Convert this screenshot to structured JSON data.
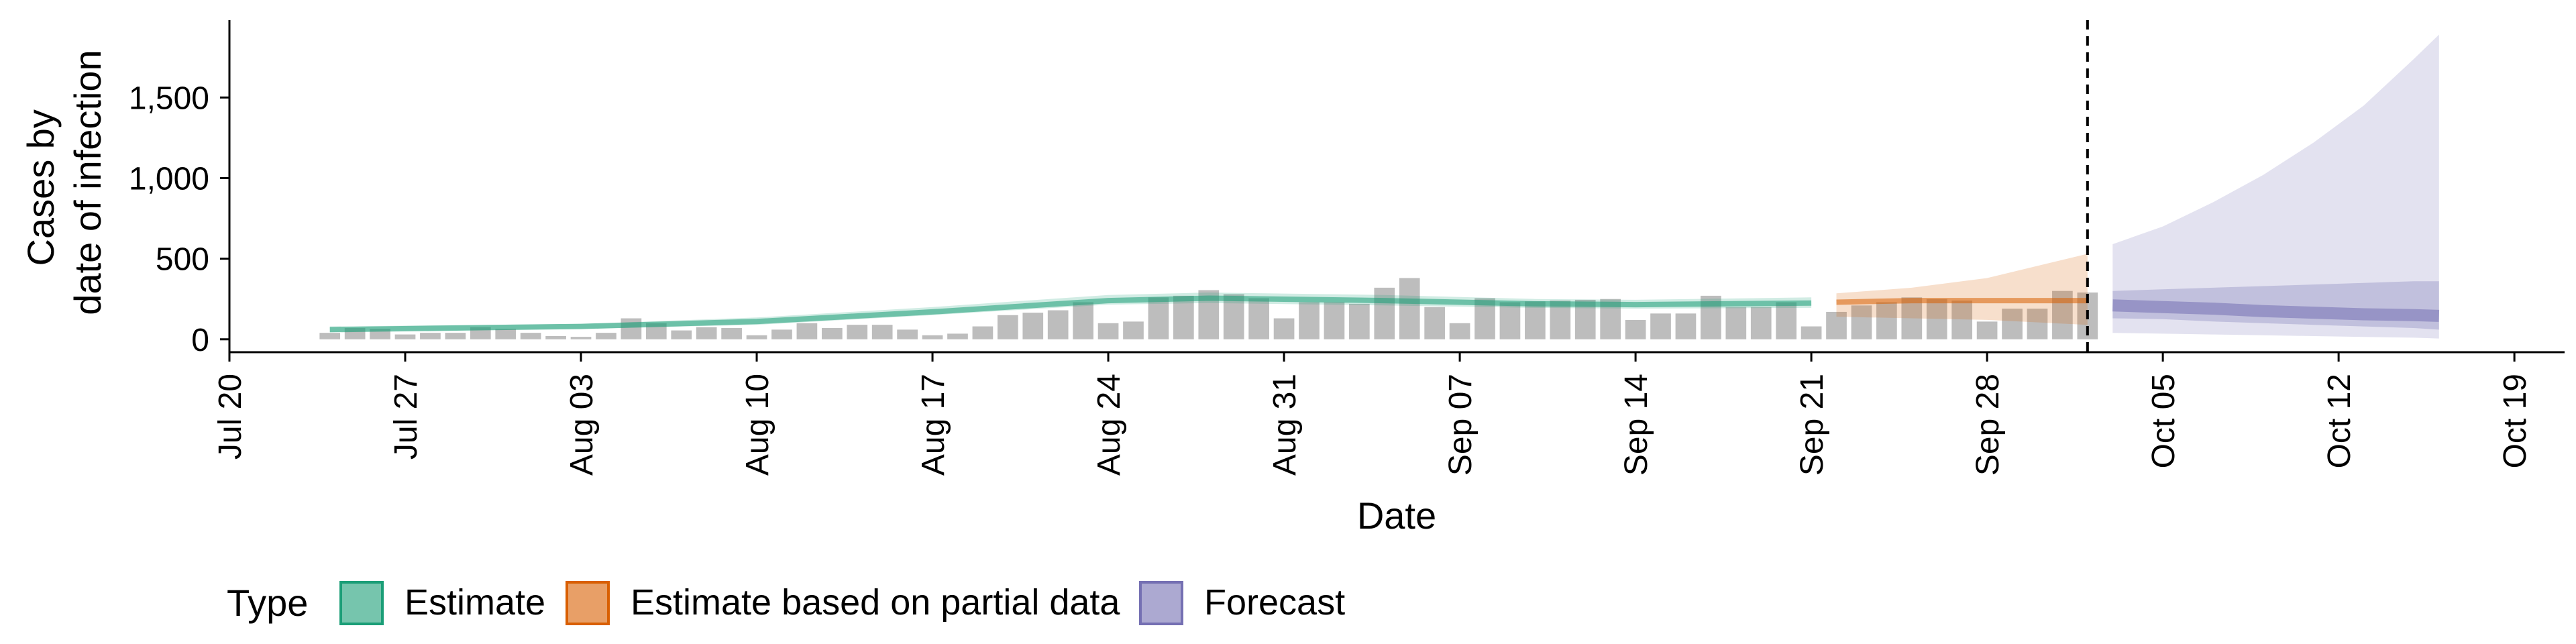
{
  "chart_data": {
    "type": "bar",
    "ylabel_lines": [
      "Cases by",
      "date of infection"
    ],
    "xlabel": "Date",
    "x_ticks": [
      "Jul 20",
      "Jul 27",
      "Aug 03",
      "Aug 10",
      "Aug 17",
      "Aug 24",
      "Aug 31",
      "Sep 07",
      "Sep 14",
      "Sep 21",
      "Sep 28",
      "Oct 05",
      "Oct 12",
      "Oct 19"
    ],
    "y_ticks": [
      "0",
      "500",
      "1,000",
      "1,500"
    ],
    "ylim": [
      -80,
      1980
    ],
    "x_start": "2020-07-20",
    "x_end": "2020-10-21",
    "vline_date": "2020-10-02",
    "bars": {
      "start_date": "2020-07-24",
      "color": "#bdbdbd",
      "values": [
        40,
        70,
        65,
        30,
        40,
        40,
        75,
        65,
        40,
        20,
        15,
        40,
        130,
        100,
        55,
        75,
        70,
        25,
        60,
        100,
        70,
        90,
        90,
        60,
        25,
        35,
        80,
        150,
        165,
        180,
        230,
        100,
        110,
        260,
        270,
        305,
        280,
        255,
        130,
        230,
        230,
        220,
        320,
        380,
        200,
        100,
        255,
        230,
        235,
        240,
        245,
        250,
        120,
        160,
        160,
        270,
        200,
        200,
        230,
        80,
        170,
        210,
        230,
        260,
        250,
        240,
        110,
        190,
        190,
        300,
        290
      ]
    },
    "series": [
      {
        "name": "Estimate",
        "color": "#1b9e77",
        "dates": [
          "2020-07-24",
          "2020-08-03",
          "2020-08-10",
          "2020-08-17",
          "2020-08-24",
          "2020-08-28",
          "2020-09-04",
          "2020-09-10",
          "2020-09-14",
          "2020-09-21"
        ],
        "median": [
          60,
          80,
          110,
          170,
          240,
          255,
          240,
          220,
          215,
          225
        ],
        "lower": [
          45,
          65,
          90,
          150,
          215,
          225,
          210,
          195,
          190,
          195
        ],
        "upper": [
          80,
          95,
          135,
          200,
          275,
          290,
          275,
          250,
          245,
          260
        ]
      },
      {
        "name": "Estimate based on partial data",
        "color": "#d95f02",
        "dates": [
          "2020-09-22",
          "2020-09-25",
          "2020-09-28",
          "2020-10-02"
        ],
        "median": [
          230,
          240,
          240,
          240
        ],
        "lower": [
          140,
          130,
          120,
          90
        ],
        "upper": [
          285,
          320,
          380,
          530
        ]
      },
      {
        "name": "Forecast",
        "color": "#7570b3",
        "dates": [
          "2020-10-03",
          "2020-10-05",
          "2020-10-07",
          "2020-10-09",
          "2020-10-11",
          "2020-10-13",
          "2020-10-15",
          "2020-10-16"
        ],
        "median": [
          210,
          200,
          190,
          175,
          165,
          155,
          150,
          145
        ],
        "lower": [
          40,
          35,
          30,
          25,
          20,
          15,
          10,
          5
        ],
        "upper": [
          590,
          700,
          850,
          1020,
          1220,
          1450,
          1740,
          1890
        ],
        "inner_lower": [
          130,
          125,
          110,
          100,
          90,
          80,
          70,
          60
        ],
        "inner_upper": [
          300,
          310,
          320,
          330,
          340,
          350,
          360,
          360
        ]
      }
    ],
    "legend": {
      "position": "bottom-left",
      "title": "Type",
      "items": [
        "Estimate",
        "Estimate based on partial data",
        "Forecast"
      ]
    },
    "grid": false
  }
}
